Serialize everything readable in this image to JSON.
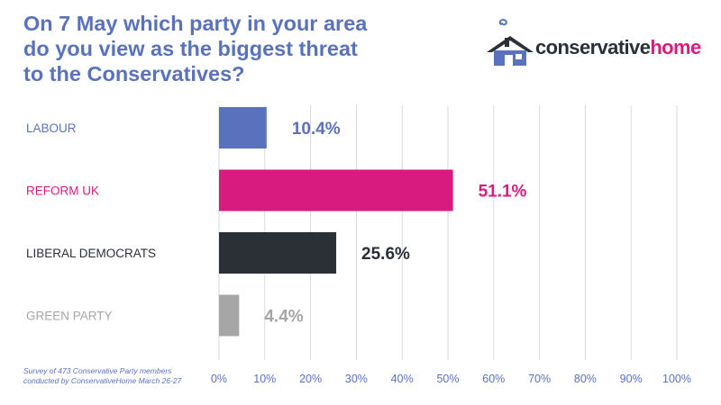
{
  "title_lines": [
    "On 7 May which party in your area",
    "do you view as the biggest threat",
    "to the Conservatives?"
  ],
  "logo": {
    "part1": "conservative",
    "part2": "home"
  },
  "footnote_lines": [
    "Survey of 473 Conservative Party members",
    "conducted by ConservativeHome March 26-27"
  ],
  "colors": {
    "title": "#5a72be",
    "grid": "#d9d9d9",
    "brand_dark": "#2b3037",
    "brand_pink": "#d81b7f"
  },
  "chart_data": {
    "type": "bar",
    "orientation": "horizontal",
    "title": "On 7 May which party in your area do you view as the biggest threat to the Conservatives?",
    "categories": [
      "LABOUR",
      "REFORM UK",
      "LIBERAL DEMOCRATS",
      "GREEN PARTY"
    ],
    "values": [
      10.4,
      51.1,
      25.6,
      4.4
    ],
    "value_labels": [
      "10.4%",
      "51.1%",
      "25.6%",
      "4.4%"
    ],
    "colors": [
      "#5a72be",
      "#d81b7f",
      "#2b3037",
      "#a6a6a6"
    ],
    "xlim": [
      0,
      100
    ],
    "xticks": [
      0,
      10,
      20,
      30,
      40,
      50,
      60,
      70,
      80,
      90,
      100
    ],
    "xtick_labels": [
      "0%",
      "10%",
      "20%",
      "30%",
      "40%",
      "50%",
      "60%",
      "70%",
      "80%",
      "90%",
      "100%"
    ],
    "grid": true,
    "legend": "none"
  }
}
